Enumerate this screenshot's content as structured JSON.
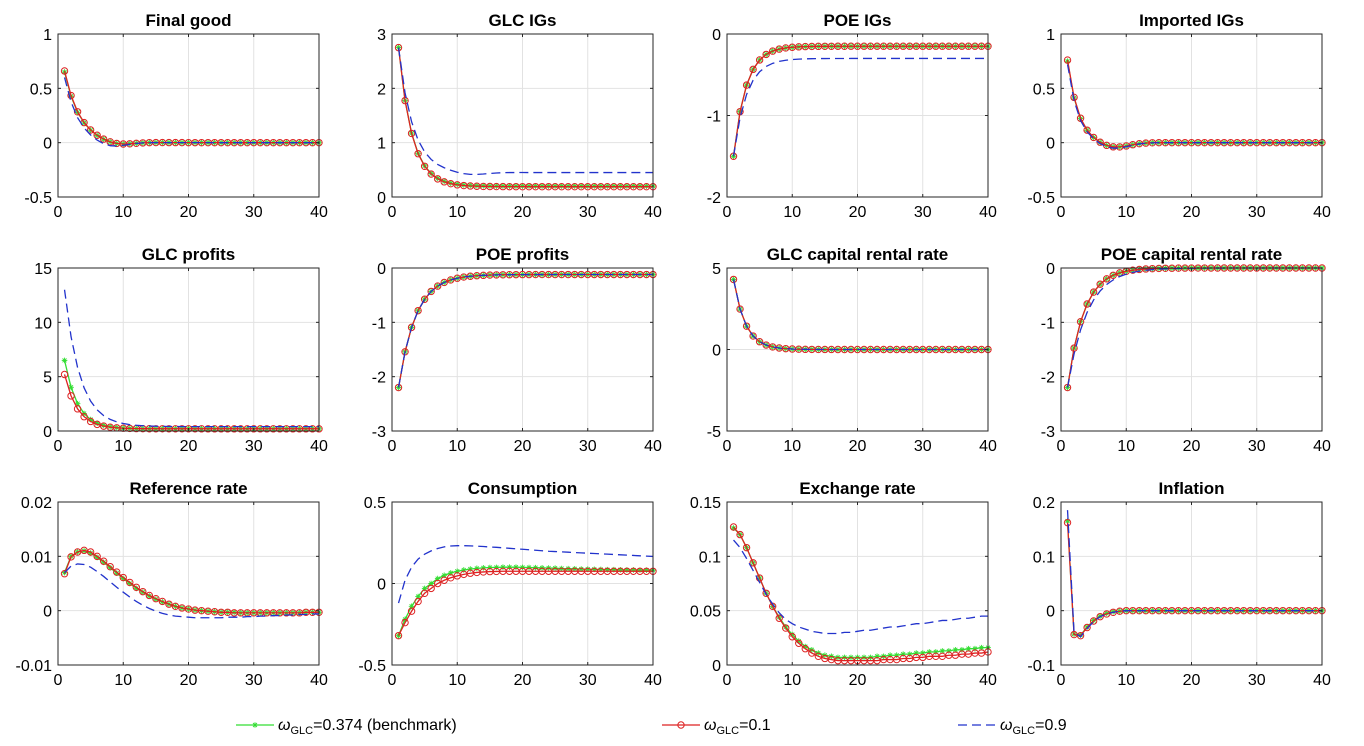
{
  "chart_data": {
    "type": "line",
    "x": [
      1,
      2,
      3,
      4,
      5,
      6,
      7,
      8,
      9,
      10,
      11,
      12,
      13,
      14,
      15,
      16,
      17,
      18,
      19,
      20,
      21,
      22,
      23,
      24,
      25,
      26,
      27,
      28,
      29,
      30,
      31,
      32,
      33,
      34,
      35,
      36,
      37,
      38,
      39,
      40
    ],
    "xlim": [
      0,
      40
    ],
    "xticks": [
      "0",
      "10",
      "20",
      "30",
      "40"
    ],
    "grid": true,
    "legend_position": "bottom",
    "legend": [
      {
        "id": "bench",
        "symbol": "ω",
        "sub": "GLC",
        "rest": "=0.374 (benchmark)",
        "color": "#33dd33",
        "style": "solid-star"
      },
      {
        "id": "low",
        "symbol": "ω",
        "sub": "GLC",
        "rest": "=0.1",
        "color": "#dd2222",
        "style": "solid-circle"
      },
      {
        "id": "high",
        "symbol": "ω",
        "sub": "GLC",
        "rest": "=0.9",
        "color": "#2233cc",
        "style": "dashed"
      }
    ],
    "panels": [
      {
        "title": "Final good",
        "ylim": [
          -0.5,
          1
        ],
        "yticks": [
          "1",
          "0.5",
          "0",
          "-0.5"
        ],
        "series": {
          "bench": {
            "start": 0.65,
            "end": 0.0,
            "rate": 0.42,
            "dip": -0.03,
            "dipAt": 9
          },
          "low": {
            "start": 0.66,
            "end": 0.0,
            "rate": 0.42,
            "dip": -0.03,
            "dipAt": 9
          },
          "high": {
            "start": 0.6,
            "end": 0.0,
            "rate": 0.47,
            "dip": -0.05,
            "dipAt": 8
          }
        }
      },
      {
        "title": "GLC IGs",
        "ylim": [
          0,
          3
        ],
        "yticks": [
          "3",
          "2",
          "1",
          "0"
        ],
        "series": {
          "bench": {
            "start": 2.75,
            "end": 0.2,
            "rate": 0.48
          },
          "low": {
            "start": 2.75,
            "end": 0.19,
            "rate": 0.48
          },
          "high": {
            "start": 2.75,
            "end": 0.45,
            "rate": 0.45,
            "dip": -0.05,
            "dipAt": 12
          }
        }
      },
      {
        "title": "POE IGs",
        "ylim": [
          -2,
          0
        ],
        "yticks": [
          "0",
          "-1",
          "-2"
        ],
        "series": {
          "bench": {
            "start": -1.5,
            "end": -0.15,
            "rate": 0.52
          },
          "low": {
            "start": -1.5,
            "end": -0.15,
            "rate": 0.52
          },
          "high": {
            "start": -1.5,
            "end": -0.3,
            "rate": 0.5
          }
        }
      },
      {
        "title": "Imported IGs",
        "ylim": [
          -0.5,
          1
        ],
        "yticks": [
          "1",
          "0.5",
          "0",
          "-0.5"
        ],
        "series": {
          "bench": {
            "start": 0.75,
            "end": 0.0,
            "rate": 0.6,
            "dip": -0.05,
            "dipAt": 8
          },
          "low": {
            "start": 0.76,
            "end": 0.0,
            "rate": 0.6,
            "dip": -0.05,
            "dipAt": 8
          },
          "high": {
            "start": 0.72,
            "end": 0.0,
            "rate": 0.62,
            "dip": -0.06,
            "dipAt": 8
          }
        }
      },
      {
        "title": "GLC profits",
        "ylim": [
          0,
          15
        ],
        "yticks": [
          "15",
          "10",
          "5",
          "0"
        ],
        "series": {
          "bench": {
            "start": 6.5,
            "end": 0.2,
            "rate": 0.5
          },
          "low": {
            "start": 5.2,
            "end": 0.2,
            "rate": 0.5
          },
          "high": {
            "start": 13.0,
            "end": 0.4,
            "rate": 0.42
          }
        }
      },
      {
        "title": "POE profits",
        "ylim": [
          -3,
          0
        ],
        "yticks": [
          "0",
          "-1",
          "-2",
          "-3"
        ],
        "series": {
          "bench": {
            "start": -2.2,
            "end": -0.12,
            "rate": 0.38
          },
          "low": {
            "start": -2.2,
            "end": -0.12,
            "rate": 0.38
          },
          "high": {
            "start": -2.2,
            "end": -0.12,
            "rate": 0.38
          }
        }
      },
      {
        "title": "GLC capital rental rate",
        "ylim": [
          -5,
          5
        ],
        "yticks": [
          "5",
          "0",
          "-5"
        ],
        "series": {
          "bench": {
            "start": 4.3,
            "end": 0.0,
            "rate": 0.55
          },
          "low": {
            "start": 4.3,
            "end": 0.0,
            "rate": 0.55
          },
          "high": {
            "start": 4.3,
            "end": 0.0,
            "rate": 0.55
          }
        }
      },
      {
        "title": "POE capital rental rate",
        "ylim": [
          -3,
          0
        ],
        "yticks": [
          "0",
          "-1",
          "-2",
          "-3"
        ],
        "series": {
          "bench": {
            "start": -2.2,
            "end": 0.0,
            "rate": 0.4
          },
          "low": {
            "start": -2.2,
            "end": 0.0,
            "rate": 0.4
          },
          "high": {
            "start": -2.2,
            "end": 0.0,
            "rate": 0.33
          }
        }
      },
      {
        "title": "Reference rate",
        "ylim": [
          -0.01,
          0.02
        ],
        "yticks": [
          "0.02",
          "0.01",
          "0",
          "-0.01"
        ],
        "series": {
          "bench": {
            "points": [
              0.007,
              0.01,
              0.0108,
              0.011,
              0.0106,
              0.0098,
              0.0089,
              0.0079,
              0.0069,
              0.0059,
              0.005,
              0.0041,
              0.0034,
              0.0027,
              0.0021,
              0.0016,
              0.0012,
              0.0008,
              0.0005,
              0.0003,
              0.0001,
              0.0,
              -0.0001,
              -0.0002,
              -0.0003,
              -0.0003,
              -0.0003,
              -0.0004,
              -0.0004,
              -0.0004,
              -0.0004,
              -0.0004,
              -0.0004,
              -0.0004,
              -0.0004,
              -0.0004,
              -0.0004,
              -0.0003,
              -0.0003,
              -0.0003
            ]
          },
          "low": {
            "points": [
              0.0068,
              0.0099,
              0.0108,
              0.0111,
              0.0108,
              0.01,
              0.0091,
              0.0081,
              0.0071,
              0.0061,
              0.0052,
              0.0043,
              0.0035,
              0.0028,
              0.0022,
              0.0017,
              0.0012,
              0.0008,
              0.0005,
              0.0003,
              0.0001,
              0.0,
              -0.0001,
              -0.0002,
              -0.0003,
              -0.0003,
              -0.0004,
              -0.0004,
              -0.0004,
              -0.0004,
              -0.0004,
              -0.0004,
              -0.0004,
              -0.0004,
              -0.0004,
              -0.0004,
              -0.0004,
              -0.0003,
              -0.0003,
              -0.0003
            ]
          },
          "high": {
            "points": [
              0.007,
              0.0082,
              0.0086,
              0.0085,
              0.008,
              0.0072,
              0.0063,
              0.0053,
              0.0043,
              0.0034,
              0.0025,
              0.0017,
              0.001,
              0.0004,
              -0.0001,
              -0.0005,
              -0.0008,
              -0.001,
              -0.0011,
              -0.0012,
              -0.0013,
              -0.0013,
              -0.0013,
              -0.0013,
              -0.0013,
              -0.0012,
              -0.0012,
              -0.0012,
              -0.0011,
              -0.0011,
              -0.001,
              -0.001,
              -0.0009,
              -0.0009,
              -0.0008,
              -0.0008,
              -0.0007,
              -0.0007,
              -0.0006,
              -0.0006
            ]
          }
        }
      },
      {
        "title": "Consumption",
        "ylim": [
          -0.5,
          0.5
        ],
        "yticks": [
          "0.5",
          "0",
          "-0.5"
        ],
        "series": {
          "bench": {
            "points": [
              -0.32,
              -0.22,
              -0.14,
              -0.08,
              -0.03,
              0.0,
              0.03,
              0.05,
              0.065,
              0.075,
              0.083,
              0.089,
              0.093,
              0.096,
              0.098,
              0.099,
              0.1,
              0.1,
              0.1,
              0.099,
              0.098,
              0.097,
              0.096,
              0.095,
              0.094,
              0.092,
              0.091,
              0.09,
              0.089,
              0.088,
              0.087,
              0.086,
              0.085,
              0.085,
              0.084,
              0.083,
              0.083,
              0.082,
              0.082,
              0.081
            ]
          },
          "low": {
            "points": [
              -0.32,
              -0.24,
              -0.17,
              -0.11,
              -0.06,
              -0.03,
              0.0,
              0.02,
              0.035,
              0.047,
              0.056,
              0.063,
              0.068,
              0.071,
              0.073,
              0.074,
              0.075,
              0.075,
              0.075,
              0.075,
              0.075,
              0.075,
              0.075,
              0.075,
              0.075,
              0.075,
              0.075,
              0.075,
              0.075,
              0.075,
              0.075,
              0.075,
              0.075,
              0.075,
              0.075,
              0.075,
              0.075,
              0.075,
              0.075,
              0.075
            ]
          },
          "high": {
            "points": [
              -0.12,
              0.02,
              0.1,
              0.15,
              0.18,
              0.2,
              0.215,
              0.225,
              0.23,
              0.232,
              0.232,
              0.231,
              0.229,
              0.227,
              0.224,
              0.222,
              0.219,
              0.216,
              0.213,
              0.21,
              0.207,
              0.204,
              0.201,
              0.198,
              0.196,
              0.194,
              0.192,
              0.19,
              0.188,
              0.186,
              0.184,
              0.182,
              0.18,
              0.178,
              0.176,
              0.174,
              0.172,
              0.17,
              0.168,
              0.166
            ]
          }
        }
      },
      {
        "title": "Exchange rate",
        "ylim": [
          0,
          0.15
        ],
        "yticks": [
          "0.15",
          "0.1",
          "0.05",
          "0"
        ],
        "series": {
          "bench": {
            "points": [
              0.126,
              0.12,
              0.108,
              0.094,
              0.08,
              0.066,
              0.054,
              0.044,
              0.035,
              0.028,
              0.022,
              0.017,
              0.014,
              0.011,
              0.009,
              0.008,
              0.007,
              0.007,
              0.007,
              0.007,
              0.007,
              0.007,
              0.008,
              0.008,
              0.009,
              0.009,
              0.01,
              0.01,
              0.011,
              0.011,
              0.012,
              0.012,
              0.013,
              0.013,
              0.014,
              0.014,
              0.015,
              0.015,
              0.016,
              0.016
            ]
          },
          "low": {
            "points": [
              0.127,
              0.12,
              0.108,
              0.094,
              0.08,
              0.066,
              0.054,
              0.043,
              0.034,
              0.026,
              0.02,
              0.015,
              0.011,
              0.008,
              0.006,
              0.005,
              0.004,
              0.004,
              0.004,
              0.004,
              0.004,
              0.004,
              0.004,
              0.005,
              0.005,
              0.005,
              0.006,
              0.006,
              0.007,
              0.007,
              0.008,
              0.008,
              0.008,
              0.009,
              0.009,
              0.01,
              0.01,
              0.011,
              0.011,
              0.012
            ]
          },
          "high": {
            "points": [
              0.115,
              0.108,
              0.098,
              0.087,
              0.076,
              0.065,
              0.056,
              0.048,
              0.042,
              0.038,
              0.035,
              0.033,
              0.031,
              0.03,
              0.029,
              0.029,
              0.029,
              0.03,
              0.03,
              0.031,
              0.032,
              0.032,
              0.033,
              0.034,
              0.035,
              0.035,
              0.036,
              0.037,
              0.038,
              0.038,
              0.039,
              0.04,
              0.041,
              0.041,
              0.042,
              0.043,
              0.043,
              0.044,
              0.045,
              0.045
            ]
          }
        }
      },
      {
        "title": "Inflation",
        "ylim": [
          -0.1,
          0.2
        ],
        "yticks": [
          "0.2",
          "0.1",
          "0",
          "-0.1"
        ],
        "series": {
          "bench": {
            "points": [
              0.165,
              -0.043,
              -0.045,
              -0.03,
              -0.018,
              -0.01,
              -0.005,
              -0.002,
              -0.001,
              0.0,
              0.0,
              0.0,
              0.0,
              0.0,
              0.0,
              0.0,
              0.0,
              0.0,
              0.0,
              0.0,
              0.0,
              0.0,
              0.0,
              0.0,
              0.0,
              0.0,
              0.0,
              0.0,
              0.0,
              0.0,
              0.0,
              0.0,
              0.0,
              0.0,
              0.0,
              0.0,
              0.0,
              0.0,
              0.0,
              0.0
            ]
          },
          "low": {
            "points": [
              0.162,
              -0.044,
              -0.046,
              -0.031,
              -0.019,
              -0.011,
              -0.006,
              -0.003,
              -0.001,
              0.0,
              0.0,
              0.0,
              0.0,
              0.0,
              0.0,
              0.0,
              0.0,
              0.0,
              0.0,
              0.0,
              0.0,
              0.0,
              0.0,
              0.0,
              0.0,
              0.0,
              0.0,
              0.0,
              0.0,
              0.0,
              0.0,
              0.0,
              0.0,
              0.0,
              0.0,
              0.0,
              0.0,
              0.0,
              0.0,
              0.0
            ]
          },
          "high": {
            "points": [
              0.185,
              -0.04,
              -0.048,
              -0.033,
              -0.02,
              -0.011,
              -0.006,
              -0.003,
              -0.001,
              0.0,
              0.0,
              0.0,
              0.0,
              0.0,
              0.0,
              0.0,
              0.0,
              0.0,
              0.0,
              0.0,
              0.0,
              0.0,
              0.0,
              0.0,
              0.0,
              0.0,
              0.0,
              0.0,
              0.0,
              0.0,
              0.0,
              0.0,
              0.0,
              0.0,
              0.0,
              0.0,
              0.0,
              0.0,
              0.0,
              0.0
            ]
          }
        }
      }
    ]
  }
}
